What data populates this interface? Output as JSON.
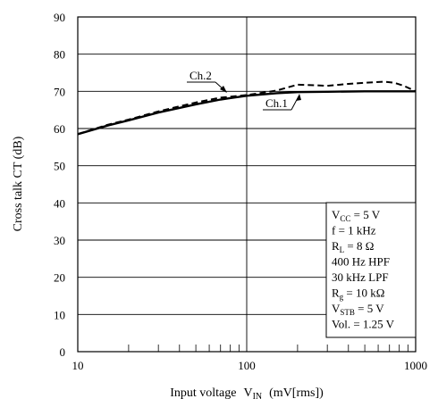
{
  "chart_data": {
    "type": "line",
    "title": "",
    "xlabel": "Input voltage",
    "xlabel_symbol": "V",
    "xlabel_symbol_sub": "IN",
    "xlabel_unit": "(mV[rms])",
    "ylabel": "Cross talk  CT  (dB)",
    "xscale": "log",
    "xlim": [
      10,
      1000
    ],
    "ylim": [
      0,
      90
    ],
    "grid": true,
    "x_ticks": [
      "10",
      "100",
      "1000"
    ],
    "y_ticks": [
      "0",
      "10",
      "20",
      "30",
      "40",
      "50",
      "60",
      "70",
      "80",
      "90"
    ],
    "series": [
      {
        "name": "Ch.1",
        "style": "solid",
        "x": [
          10,
          15,
          20,
          30,
          50,
          70,
          100,
          150,
          200,
          300,
          500,
          700,
          1000
        ],
        "y": [
          58.5,
          60.8,
          62.2,
          64.3,
          66.5,
          67.8,
          68.8,
          69.5,
          69.8,
          69.9,
          70.0,
          70.0,
          70.0
        ]
      },
      {
        "name": "Ch.2",
        "style": "dashed",
        "x": [
          10,
          15,
          20,
          30,
          50,
          70,
          100,
          150,
          200,
          300,
          400,
          500,
          650,
          750,
          850,
          1000
        ],
        "y": [
          58.5,
          61.0,
          62.4,
          64.6,
          67.0,
          68.3,
          69.0,
          70.2,
          71.8,
          71.5,
          72.0,
          72.3,
          72.6,
          72.3,
          71.5,
          70.0
        ]
      }
    ],
    "conditions": [
      {
        "main": "V",
        "sub": "CC",
        "rest": " = 5 V"
      },
      {
        "main": "f = 1 kHz",
        "sub": "",
        "rest": ""
      },
      {
        "main": "R",
        "sub": "L",
        "rest": " = 8 Ω"
      },
      {
        "main": "400 Hz HPF",
        "sub": "",
        "rest": ""
      },
      {
        "main": "30 kHz LPF",
        "sub": "",
        "rest": ""
      },
      {
        "main": "R",
        "sub": "g",
        "rest": " = 10 kΩ"
      },
      {
        "main": "V",
        "sub": "STB",
        "rest": " = 5 V"
      },
      {
        "main": "Vol. = 1.25 V",
        "sub": "",
        "rest": ""
      }
    ]
  }
}
